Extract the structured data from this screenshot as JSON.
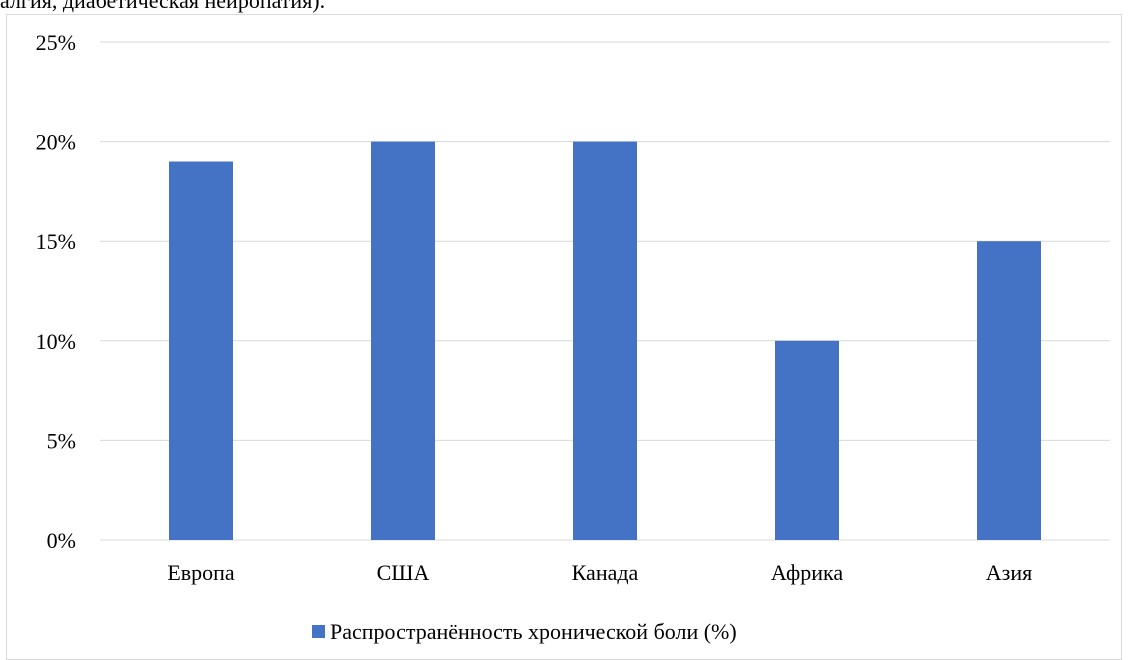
{
  "caption_fragment": "алгия, диабетическая нейропатия).",
  "chart_data": {
    "type": "bar",
    "categories": [
      "Европа",
      "США",
      "Канада",
      "Африка",
      "Азия"
    ],
    "series": [
      {
        "name": "Распространённость хронической боли (%)",
        "values": [
          19,
          20,
          20,
          10,
          15
        ],
        "color": "#4472c4"
      }
    ],
    "yticks": [
      "0%",
      "5%",
      "10%",
      "15%",
      "20%",
      "25%"
    ],
    "ylim": [
      0,
      25
    ],
    "grid": true,
    "gridColor": "#d9d9d9",
    "legend_position": "bottom"
  }
}
